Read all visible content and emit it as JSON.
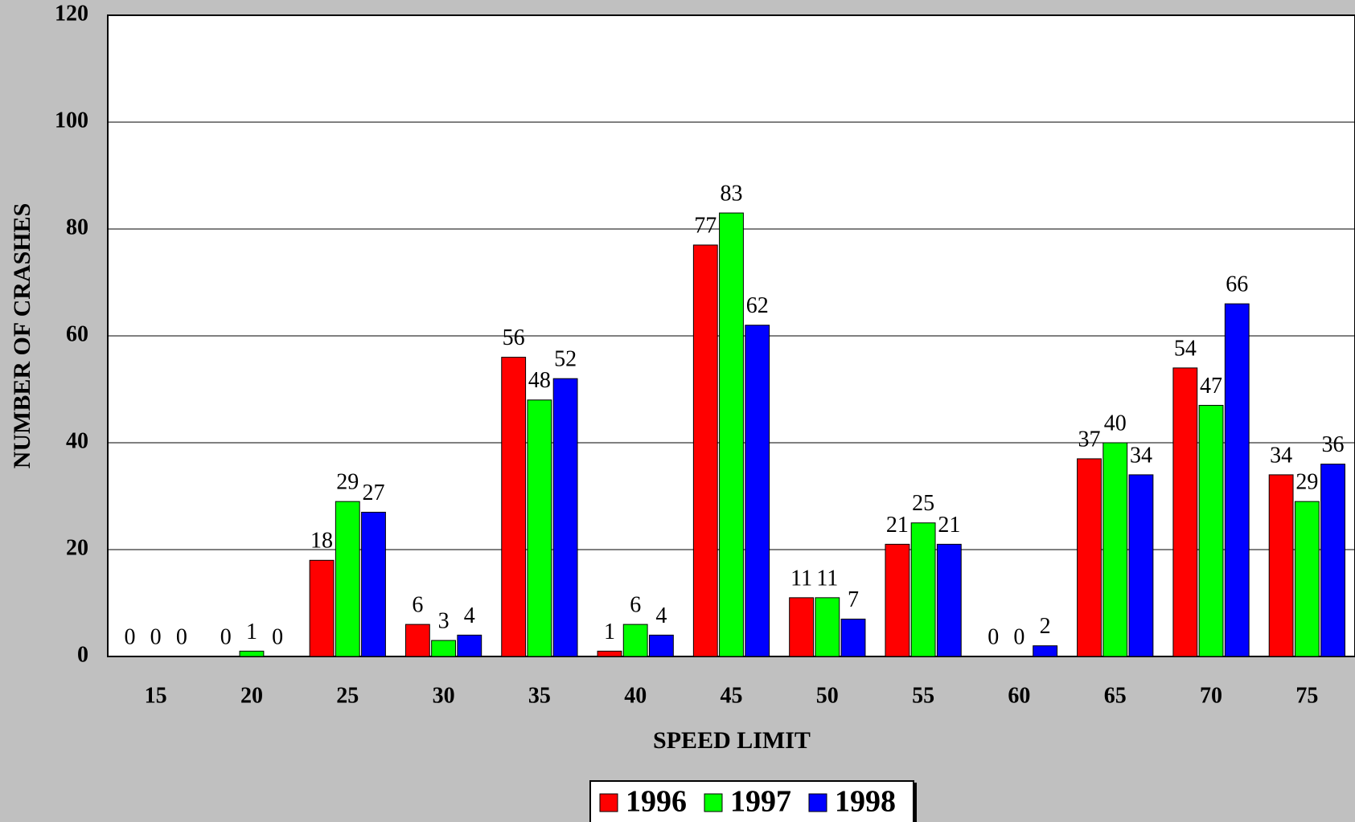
{
  "chart_data": {
    "type": "bar",
    "x_label": "SPEED LIMIT",
    "y_label": "NUMBER OF CRASHES",
    "categories": [
      "15",
      "20",
      "25",
      "30",
      "35",
      "40",
      "45",
      "50",
      "55",
      "60",
      "65",
      "70",
      "75"
    ],
    "series": [
      {
        "name": "1996",
        "color": "#ff0000",
        "values": [
          0,
          0,
          18,
          6,
          56,
          1,
          77,
          11,
          21,
          0,
          37,
          54,
          34
        ]
      },
      {
        "name": "1997",
        "color": "#00ff00",
        "values": [
          0,
          1,
          29,
          3,
          48,
          6,
          83,
          11,
          25,
          0,
          40,
          47,
          29
        ]
      },
      {
        "name": "1998",
        "color": "#0000ff",
        "values": [
          0,
          0,
          27,
          4,
          52,
          4,
          62,
          7,
          21,
          2,
          34,
          66,
          36
        ]
      }
    ],
    "ylim": [
      0,
      120
    ],
    "yticks": [
      0,
      20,
      40,
      60,
      80,
      100,
      120
    ],
    "grid": true,
    "legend": "bottom"
  }
}
